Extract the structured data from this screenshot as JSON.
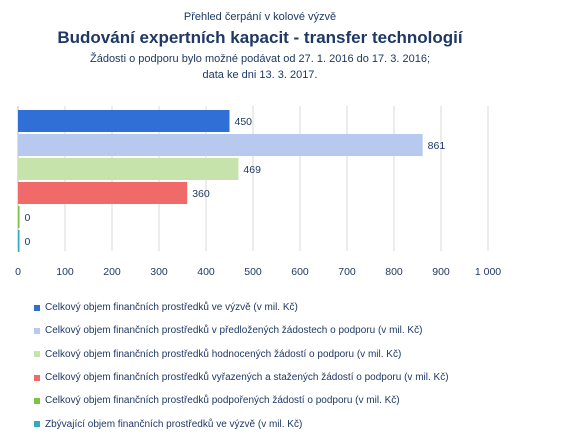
{
  "header": {
    "supertitle": "Přehled čerpání v kolové výzvě",
    "title": "Budování expertních kapacit - transfer technologií",
    "subtitle_line1": "Žádosti o podporu bylo možné  podávat od 27. 1. 2016 do 17. 3. 2016;",
    "subtitle_line2": "data ke dni 13. 3. 2017."
  },
  "chart_data": {
    "type": "bar",
    "orientation": "horizontal",
    "xlim": [
      0,
      1000
    ],
    "x_ticks": [
      "0",
      "100",
      "200",
      "300",
      "400",
      "500",
      "600",
      "700",
      "800",
      "900",
      "1 000"
    ],
    "grid": true,
    "legend_position": "bottom",
    "series": [
      {
        "name": "Celkový objem finančních prostředků ve výzvě (v mil. Kč)",
        "value": 450,
        "label": "450",
        "color": "#2f6fd6"
      },
      {
        "name": "Celkový objem finančních prostředků v předložených žádostech o podporu (v mil. Kč)",
        "value": 861,
        "label": "861",
        "color": "#b7c9ef"
      },
      {
        "name": "Celkový objem finančních prostředků hodnocených žádostí o podporu (v mil. Kč)",
        "value": 469,
        "label": "469",
        "color": "#c6e3ac"
      },
      {
        "name": "Celkový objem finančních prostředků vyřazených a stažených žádostí o podporu (v mil. Kč)",
        "value": 360,
        "label": "360",
        "color": "#f06a6a"
      },
      {
        "name": "Celkový objem finančních prostředků podpořených žádostí o podporu (v mil. Kč)",
        "value": 0,
        "label": "0",
        "color": "#7dc242"
      },
      {
        "name": "Zbývající objem finančních prostředků ve výzvě (v mil. Kč)",
        "value": 0,
        "label": "0",
        "color": "#33a9c4"
      }
    ]
  }
}
